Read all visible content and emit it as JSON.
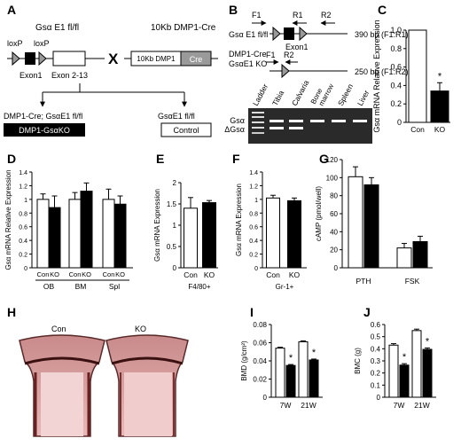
{
  "panels": {
    "A": {
      "letter": "A",
      "allele_label": "Gsα E1 fl/fl",
      "loxp_left": "loxP",
      "loxp_right": "loxP",
      "exon1": "Exon1",
      "exon2_13": "Exon 2-13",
      "cross": "X",
      "transgene_label": "10Kb DMP1-Cre",
      "promoter": "10Kb DMP1",
      "cre": "Cre",
      "ko_genotype": "DMP1-Cre; GsαE1 fl/fl",
      "ko_name": "DMP1-GsαKO",
      "ctrl_genotype": "GsαE1 fl/fl",
      "ctrl_name": "Control"
    },
    "B": {
      "letter": "B",
      "row1_label": "Gsα E1 fl/fl",
      "row1_size": "390 bp (F1:R1)",
      "row2_label_1": "DMP1-Cre",
      "row2_label_2": "GsαE1 KO",
      "row2_size": "250 bp (F1:R2)",
      "exon1": "Exon1",
      "primers": [
        "F1",
        "R1",
        "R2",
        "F1",
        "R2"
      ],
      "lanes": [
        "Ladder",
        "Tibia",
        "Calvaria",
        "Bone marrow",
        "Spleen",
        "Liver"
      ],
      "bone_marrow_1": "Bone",
      "bone_marrow_2": "marrow",
      "band_gs": "Gsα",
      "band_dgs": "ΔGsα"
    },
    "H": {
      "letter": "H",
      "con": "Con",
      "ko": "KO"
    }
  },
  "colors": {
    "white_bar": "#ffffff",
    "black_bar": "#000000",
    "stroke": "#000000"
  },
  "chart_data": [
    {
      "id": "C",
      "letter": "C",
      "type": "bar",
      "ylabel": "Gsα mRNA Relative Expression",
      "ylim": [
        0,
        1.0
      ],
      "yticks": [
        "0",
        "0.2",
        "0.4",
        "0.6",
        "0.8",
        "1.0"
      ],
      "categories": [
        "Con",
        "KO"
      ],
      "series": [
        {
          "values": [
            1.0,
            0.34
          ],
          "errors": [
            0,
            0.09
          ]
        }
      ],
      "annotations": [
        "",
        "*"
      ]
    },
    {
      "id": "D",
      "letter": "D",
      "type": "bar",
      "ylabel": "Gsα mRNA Relative Expression",
      "ylim": [
        0,
        1.4
      ],
      "yticks": [
        "0",
        "0.2",
        "0.4",
        "0.6",
        "0.8",
        "1",
        "1.2",
        "1.4"
      ],
      "categories": [
        "OB",
        "BM",
        "Spl"
      ],
      "bar_labels": [
        "Con",
        "KO"
      ],
      "series": [
        {
          "values": [
            1.0,
            1.0,
            1.0
          ],
          "errors": [
            0.08,
            0.1,
            0.15
          ]
        },
        {
          "values": [
            0.88,
            1.12,
            0.93
          ],
          "errors": [
            0.17,
            0.12,
            0.12
          ]
        }
      ]
    },
    {
      "id": "E",
      "letter": "E",
      "type": "bar",
      "ylabel": "Gsα mRNA Expression",
      "xlabel": "F4/80+",
      "ylim": [
        0,
        2
      ],
      "yticks": [
        "0",
        "0.5",
        "1",
        "1.5",
        "2"
      ],
      "categories": [
        "Con",
        "KO"
      ],
      "series": [
        {
          "values": [
            1.4,
            1.53
          ],
          "errors": [
            0.25,
            0.05
          ]
        }
      ]
    },
    {
      "id": "F",
      "letter": "F",
      "type": "bar",
      "ylabel": "Gsα mRNA Expression",
      "xlabel": "Gr-1+",
      "ylim": [
        0,
        1.4
      ],
      "yticks": [
        "0",
        "0.2",
        "0.4",
        "0.6",
        "0.8",
        "1",
        "1.2",
        "1.4"
      ],
      "categories": [
        "Con",
        "KO"
      ],
      "series": [
        {
          "values": [
            1.02,
            0.98
          ],
          "errors": [
            0.04,
            0.04
          ]
        }
      ]
    },
    {
      "id": "G",
      "letter": "G",
      "type": "bar",
      "ylabel": "cAMP (pmol/well)",
      "ylim": [
        0,
        120
      ],
      "yticks": [
        "0",
        "20",
        "40",
        "60",
        "80",
        "100",
        "120"
      ],
      "categories": [
        "PTH",
        "FSK"
      ],
      "series": [
        {
          "values": [
            101,
            22
          ],
          "errors": [
            11,
            5
          ]
        },
        {
          "values": [
            92,
            29
          ],
          "errors": [
            8,
            6
          ]
        }
      ]
    },
    {
      "id": "I",
      "letter": "I",
      "type": "bar",
      "ylabel": "BMD (g/cm²)",
      "ylim": [
        0,
        0.08
      ],
      "yticks": [
        "0",
        "0.02",
        "0.04",
        "0.06",
        "0.08"
      ],
      "categories": [
        "7W",
        "21W"
      ],
      "series": [
        {
          "values": [
            0.054,
            0.061
          ],
          "errors": [
            0.001,
            0.001
          ]
        },
        {
          "values": [
            0.035,
            0.041
          ],
          "errors": [
            0.001,
            0.001
          ]
        }
      ],
      "annotations": [
        "*",
        "*"
      ]
    },
    {
      "id": "J",
      "letter": "J",
      "type": "bar",
      "ylabel": "BMC (g)",
      "ylim": [
        0,
        0.6
      ],
      "yticks": [
        "0",
        "0.1",
        "0.2",
        "0.3",
        "0.4",
        "0.5",
        "0.6"
      ],
      "categories": [
        "7W",
        "21W"
      ],
      "series": [
        {
          "values": [
            0.43,
            0.55
          ],
          "errors": [
            0.012,
            0.012
          ]
        },
        {
          "values": [
            0.265,
            0.395
          ],
          "errors": [
            0.012,
            0.012
          ]
        }
      ],
      "annotations": [
        "*",
        "*"
      ]
    }
  ]
}
